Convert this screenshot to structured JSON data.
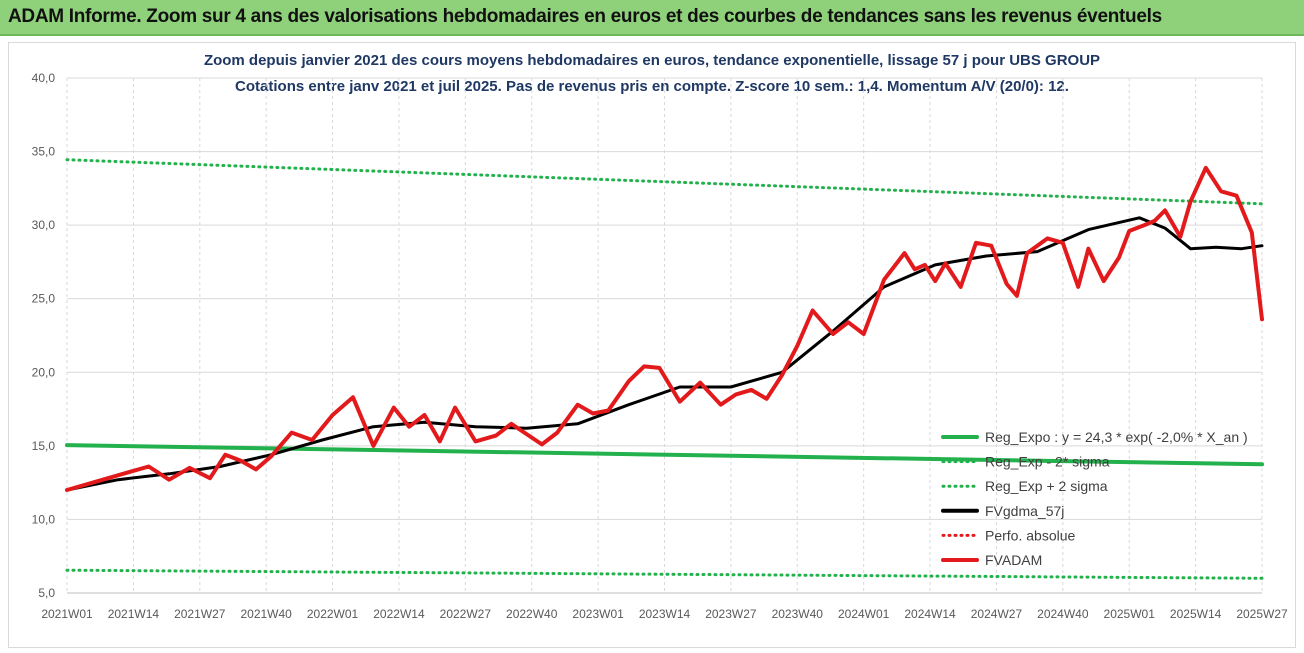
{
  "banner": {
    "title": "ADAM Informe. Zoom sur 4 ans des valorisations hebdomadaires en euros et des courbes de tendances sans les revenus éventuels"
  },
  "chart_data": {
    "type": "line",
    "title": "Zoom depuis janvier 2021 des cours moyens hebdomadaires en euros, tendance exponentielle, lissage 57 j pour UBS GROUP",
    "subtitle": "Cotations entre janv 2021 et juil 2025. Pas de revenus pris en compte. Z-score 10 sem.: 1,4. Momentum A/V (20/0): 12.",
    "xlabel": "",
    "ylabel": "",
    "ylim": [
      5,
      40
    ],
    "yticks": [
      "5,0",
      "10,0",
      "15,0",
      "20,0",
      "25,0",
      "30,0",
      "35,0",
      "40,0"
    ],
    "xticks": [
      "2021W01",
      "2021W14",
      "2021W27",
      "2021W40",
      "2022W01",
      "2022W14",
      "2022W27",
      "2022W40",
      "2023W01",
      "2023W14",
      "2023W27",
      "2023W40",
      "2024W01",
      "2024W14",
      "2024W27",
      "2024W40",
      "2025W01",
      "2025W14",
      "2025W27"
    ],
    "grid": true,
    "legend_position": "bottom-right",
    "legend": [
      {
        "key": "reg",
        "label": "Reg_Expo : y = 24,3 * exp( -2,0% *  X_an )",
        "color": "#22b14c",
        "style": "solid"
      },
      {
        "key": "low",
        "label": "Reg_Exp - 2* sigma",
        "color": "#22b14c",
        "style": "dotted"
      },
      {
        "key": "high",
        "label": "Reg_Exp + 2 sigma",
        "color": "#22b14c",
        "style": "dotted"
      },
      {
        "key": "mma",
        "label": "FVgdma_57j",
        "color": "#000000",
        "style": "solid"
      },
      {
        "key": "perf",
        "label": "Perfo. absolue",
        "color": "#e31a1c",
        "style": "dotted"
      },
      {
        "key": "price",
        "label": "FVADAM",
        "color": "#e31a1c",
        "style": "solid"
      }
    ],
    "series": [
      {
        "key": "reg",
        "x": [
          0,
          234
        ],
        "values": [
          15.05,
          13.75
        ]
      },
      {
        "key": "low",
        "x": [
          0,
          234
        ],
        "values": [
          6.55,
          6.0
        ]
      },
      {
        "key": "high",
        "x": [
          0,
          234
        ],
        "values": [
          34.45,
          31.45
        ]
      },
      {
        "key": "mma",
        "x": [
          0,
          10,
          20,
          30,
          40,
          50,
          60,
          70,
          80,
          90,
          100,
          110,
          120,
          130,
          140,
          150,
          160,
          170,
          180,
          190,
          200,
          210,
          215,
          220,
          225,
          230,
          234
        ],
        "values": [
          12.0,
          12.7,
          13.1,
          13.6,
          14.4,
          15.4,
          16.3,
          16.6,
          16.3,
          16.2,
          16.5,
          17.8,
          19.0,
          19.0,
          20.0,
          22.8,
          25.8,
          27.3,
          27.9,
          28.2,
          29.7,
          30.5,
          29.8,
          28.4,
          28.5,
          28.4,
          28.6
        ]
      },
      {
        "key": "price",
        "x": [
          0,
          6,
          12,
          16,
          20,
          24,
          28,
          31,
          34,
          37,
          40,
          44,
          48,
          52,
          56,
          60,
          64,
          67,
          70,
          73,
          76,
          80,
          84,
          87,
          90,
          93,
          96,
          100,
          103,
          106,
          110,
          113,
          116,
          120,
          124,
          128,
          131,
          134,
          137,
          140,
          143,
          146,
          150,
          153,
          156,
          160,
          164,
          166,
          168,
          170,
          172,
          175,
          178,
          181,
          184,
          186,
          188,
          190,
          192,
          195,
          198,
          200,
          203,
          206,
          208,
          211,
          213,
          215,
          218,
          220,
          223,
          226,
          229,
          232,
          234
        ],
        "values": [
          12.0,
          12.6,
          13.2,
          13.6,
          12.7,
          13.5,
          12.8,
          14.4,
          14.0,
          13.4,
          14.3,
          15.9,
          15.4,
          17.1,
          18.3,
          15.0,
          17.6,
          16.3,
          17.1,
          15.3,
          17.6,
          15.3,
          15.7,
          16.5,
          15.8,
          15.1,
          15.9,
          17.8,
          17.2,
          17.4,
          19.4,
          20.4,
          20.3,
          18.0,
          19.3,
          17.8,
          18.5,
          18.8,
          18.2,
          19.8,
          21.8,
          24.2,
          22.6,
          23.4,
          22.6,
          26.3,
          28.1,
          27.0,
          27.3,
          26.2,
          27.4,
          25.8,
          28.8,
          28.6,
          26.0,
          25.2,
          28.1,
          28.6,
          29.1,
          28.8,
          25.8,
          28.4,
          26.2,
          27.8,
          29.6,
          30.0,
          30.3,
          31.0,
          29.2,
          31.6,
          33.9,
          32.3,
          32.0,
          29.5,
          23.6
        ]
      }
    ]
  }
}
